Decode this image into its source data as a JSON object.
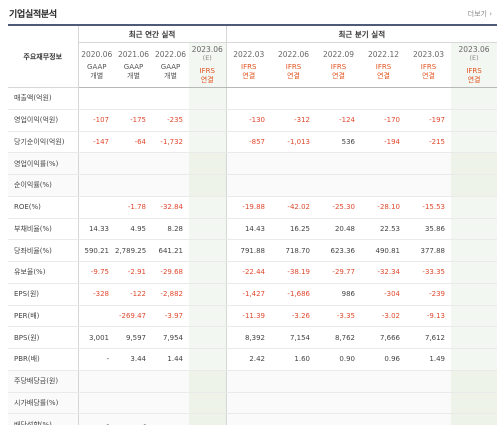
{
  "panel": {
    "title": "기업실적분석",
    "more": "더보기"
  },
  "header": {
    "label": "주요재무정보",
    "annual_group": "최근 연간 실적",
    "quarter_group": "최근 분기 실적",
    "columns": [
      {
        "period": "2020.06",
        "sub": "",
        "account": [
          "GAAP",
          "개별"
        ],
        "ifrs": false,
        "estimate": false
      },
      {
        "period": "2021.06",
        "sub": "",
        "account": [
          "GAAP",
          "개별"
        ],
        "ifrs": false,
        "estimate": false
      },
      {
        "period": "2022.06",
        "sub": "",
        "account": [
          "GAAP",
          "개별"
        ],
        "ifrs": false,
        "estimate": false
      },
      {
        "period": "2023.06",
        "sub": "(E)",
        "account": [
          "IFRS",
          "연결"
        ],
        "ifrs": true,
        "estimate": true
      },
      {
        "period": "2022.03",
        "sub": "",
        "account": [
          "IFRS",
          "연결"
        ],
        "ifrs": true,
        "estimate": false
      },
      {
        "period": "2022.06",
        "sub": "",
        "account": [
          "IFRS",
          "연결"
        ],
        "ifrs": true,
        "estimate": false
      },
      {
        "period": "2022.09",
        "sub": "",
        "account": [
          "IFRS",
          "연결"
        ],
        "ifrs": true,
        "estimate": false
      },
      {
        "period": "2022.12",
        "sub": "",
        "account": [
          "IFRS",
          "연결"
        ],
        "ifrs": true,
        "estimate": false
      },
      {
        "period": "2023.03",
        "sub": "",
        "account": [
          "IFRS",
          "연결"
        ],
        "ifrs": true,
        "estimate": false
      },
      {
        "period": "2023.06",
        "sub": "(E)",
        "account": [
          "IFRS",
          "연결"
        ],
        "ifrs": true,
        "estimate": true
      }
    ]
  },
  "rows": [
    {
      "label": "매출액(억원)",
      "values": [
        "",
        "",
        "",
        "",
        "",
        "",
        "",
        "",
        "",
        ""
      ]
    },
    {
      "label": "영업이익(억원)",
      "values": [
        "-107",
        "-175",
        "-235",
        "",
        "-130",
        "-312",
        "-124",
        "-170",
        "-197",
        ""
      ]
    },
    {
      "label": "당기순이익(억원)",
      "values": [
        "-147",
        "-64",
        "-1,732",
        "",
        "-857",
        "-1,013",
        "536",
        "-194",
        "-215",
        ""
      ]
    },
    {
      "label": "영업이익률(%)",
      "values": [
        "",
        "",
        "",
        "",
        "",
        "",
        "",
        "",
        "",
        ""
      ]
    },
    {
      "label": "순이익률(%)",
      "values": [
        "",
        "",
        "",
        "",
        "",
        "",
        "",
        "",
        "",
        ""
      ]
    },
    {
      "label": "ROE(%)",
      "values": [
        "",
        "-1.78",
        "-32.84",
        "",
        "-19.88",
        "-42.02",
        "-25.30",
        "-28.10",
        "-15.53",
        ""
      ]
    },
    {
      "label": "부채비율(%)",
      "values": [
        "14.33",
        "4.95",
        "8.28",
        "",
        "14.43",
        "16.25",
        "20.48",
        "22.53",
        "35.86",
        ""
      ]
    },
    {
      "label": "당좌비율(%)",
      "values": [
        "590.21",
        "2,789.25",
        "641.21",
        "",
        "791.88",
        "718.70",
        "623.36",
        "490.81",
        "377.88",
        ""
      ]
    },
    {
      "label": "유보율(%)",
      "values": [
        "-9.75",
        "-2.91",
        "-29.68",
        "",
        "-22.44",
        "-38.19",
        "-29.77",
        "-32.34",
        "-33.35",
        ""
      ]
    },
    {
      "label": "EPS(원)",
      "values": [
        "-328",
        "-122",
        "-2,882",
        "",
        "-1,427",
        "-1,686",
        "986",
        "-304",
        "-239",
        ""
      ]
    },
    {
      "label": "PER(배)",
      "values": [
        "",
        "-269.47",
        "-3.97",
        "",
        "-11.39",
        "-3.26",
        "-3.35",
        "-3.02",
        "-9.13",
        ""
      ]
    },
    {
      "label": "BPS(원)",
      "values": [
        "3,001",
        "9,597",
        "7,954",
        "",
        "8,392",
        "7,154",
        "8,762",
        "7,666",
        "7,612",
        ""
      ]
    },
    {
      "label": "PBR(배)",
      "values": [
        "-",
        "3.44",
        "1.44",
        "",
        "2.42",
        "1.60",
        "0.90",
        "0.96",
        "1.49",
        ""
      ]
    },
    {
      "label": "주당배당금(원)",
      "values": [
        "",
        "",
        "",
        "",
        "",
        "",
        "",
        "",
        "",
        ""
      ]
    },
    {
      "label": "시가배당률(%)",
      "values": [
        "",
        "",
        "",
        "",
        "",
        "",
        "",
        "",
        "",
        ""
      ]
    },
    {
      "label": "배당성향(%)",
      "values": [
        "-",
        "-",
        "",
        "",
        "",
        "",
        "",
        "",
        "",
        ""
      ]
    }
  ],
  "colors": {
    "negative": "#e04a2f",
    "ifrs_accent": "#e0531f",
    "header_rule": "#4c5b78",
    "estimate_bg": "#f3f7f1"
  }
}
